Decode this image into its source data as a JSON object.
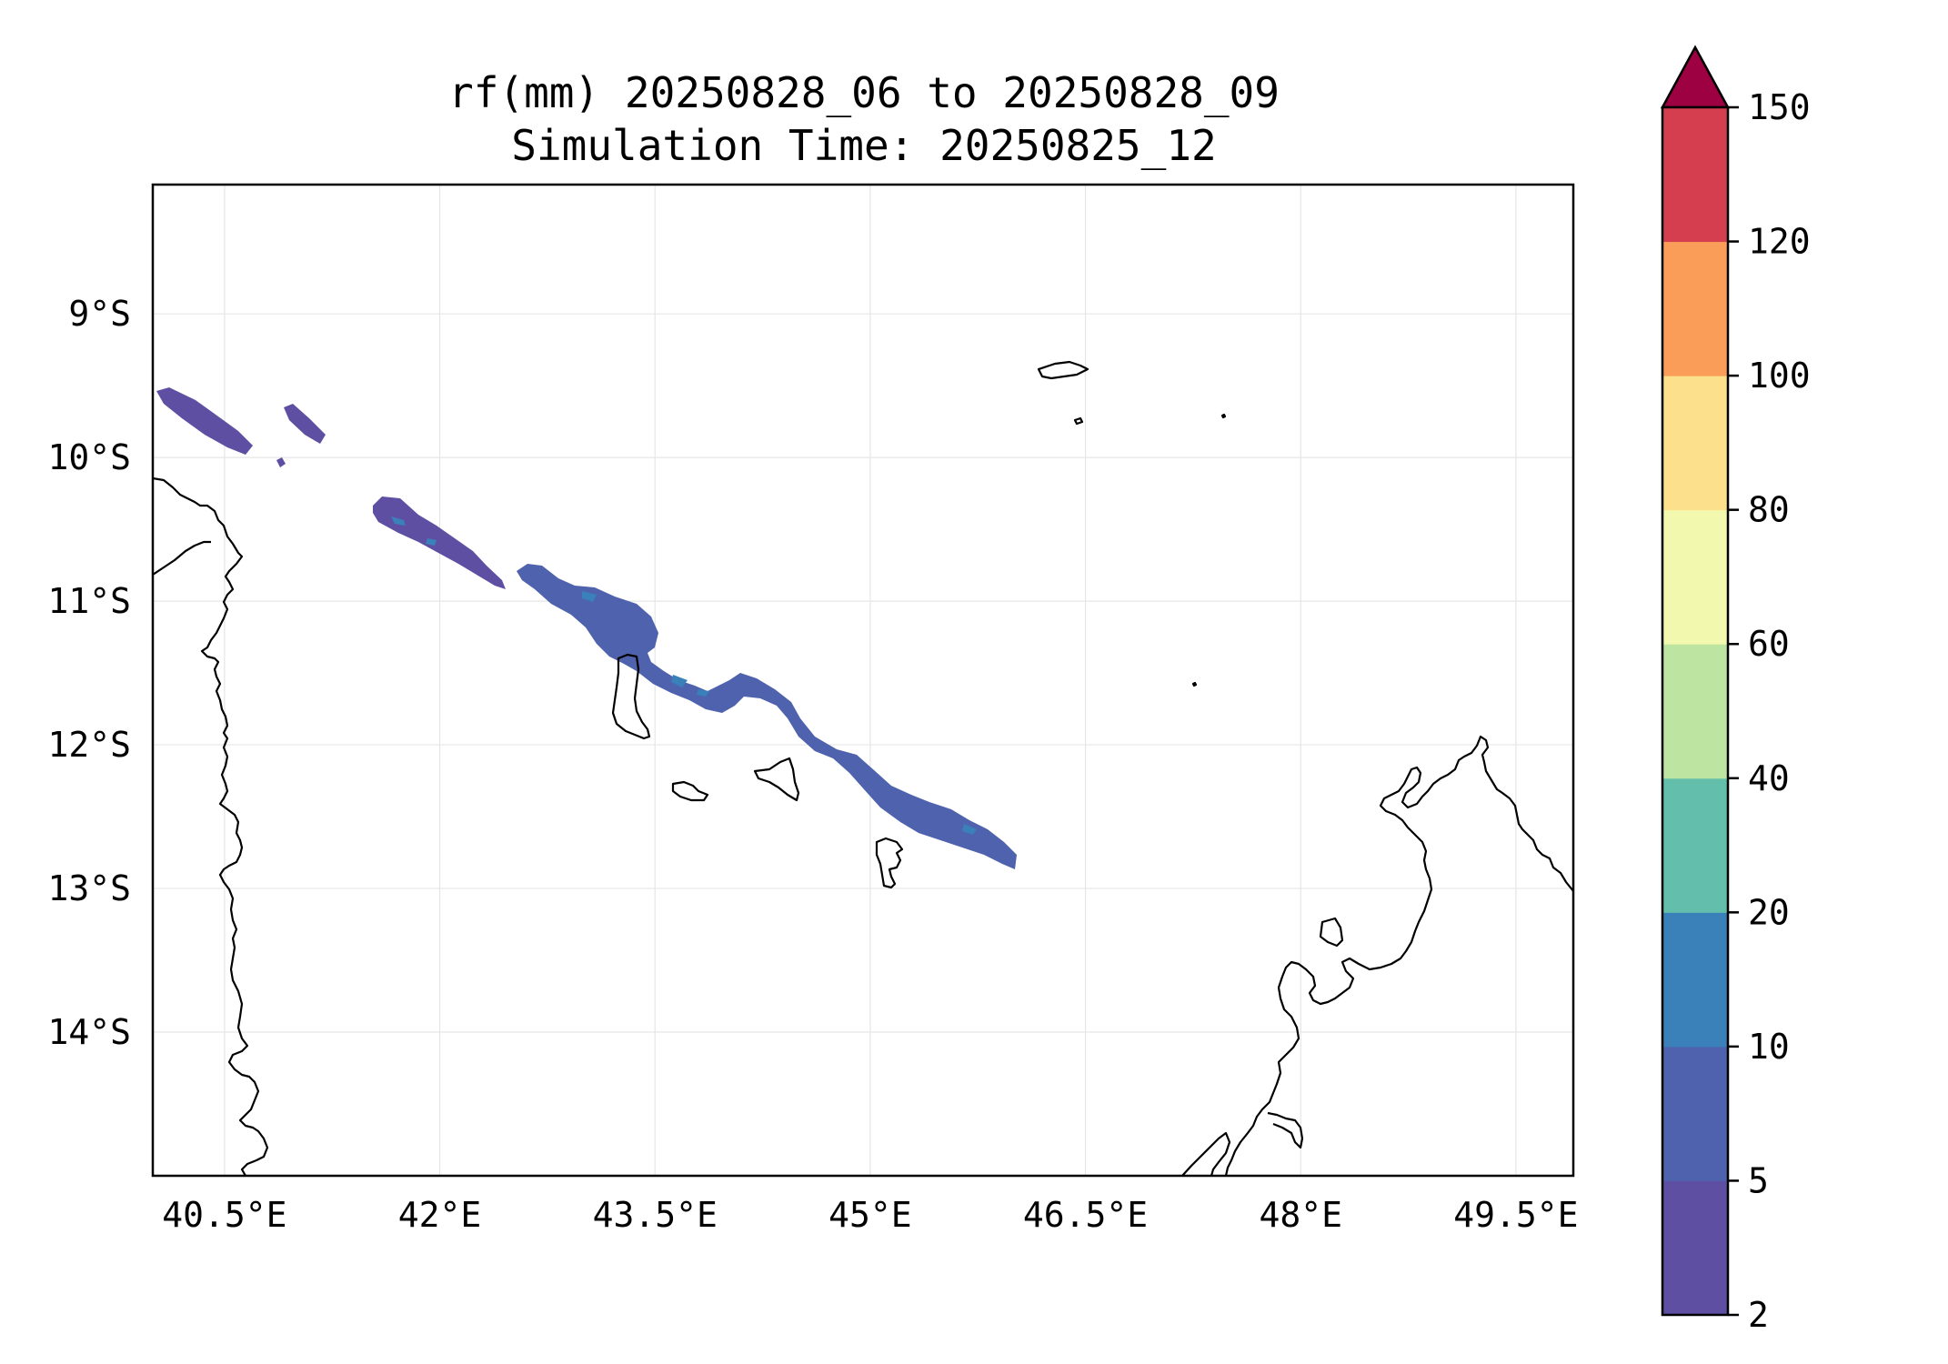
{
  "title_line1": "rf(mm) 20250828_06 to 20250828_09",
  "title_line2": "Simulation Time: 20250825_12",
  "map": {
    "lon_range": [
      40.0,
      49.9
    ],
    "lat_range": [
      -15.0,
      -8.1
    ],
    "x_ticks": [
      {
        "value": 40.5,
        "label": "40.5°E"
      },
      {
        "value": 42.0,
        "label": "42°E"
      },
      {
        "value": 43.5,
        "label": "43.5°E"
      },
      {
        "value": 45.0,
        "label": "45°E"
      },
      {
        "value": 46.5,
        "label": "46.5°E"
      },
      {
        "value": 48.0,
        "label": "48°E"
      },
      {
        "value": 49.5,
        "label": "49.5°E"
      }
    ],
    "y_ticks": [
      {
        "value": -9,
        "label": "9°S"
      },
      {
        "value": -10,
        "label": "10°S"
      },
      {
        "value": -11,
        "label": "11°S"
      },
      {
        "value": -12,
        "label": "12°S"
      },
      {
        "value": -13,
        "label": "13°S"
      },
      {
        "value": -14,
        "label": "14°S"
      }
    ],
    "grid": true
  },
  "colorbar": {
    "levels": [
      {
        "label": "2",
        "color": "#5e4fa2"
      },
      {
        "label": "5",
        "color": "#4f62ad"
      },
      {
        "label": "10",
        "color": "#3a80b9"
      },
      {
        "label": "20",
        "color": "#63bfac"
      },
      {
        "label": "40",
        "color": "#bde4a0"
      },
      {
        "label": "60",
        "color": "#f2f8ad"
      },
      {
        "label": "80",
        "color": "#fde08b"
      },
      {
        "label": "100",
        "color": "#f99d59"
      },
      {
        "label": "120",
        "color": "#d53e4f"
      },
      {
        "label": "150",
        "color": ""
      }
    ],
    "extend_color": "#9e0142"
  },
  "rain_colors": {
    "low": "#5e4fa2",
    "mid": "#4f62ad",
    "core": "#3a80b9"
  }
}
